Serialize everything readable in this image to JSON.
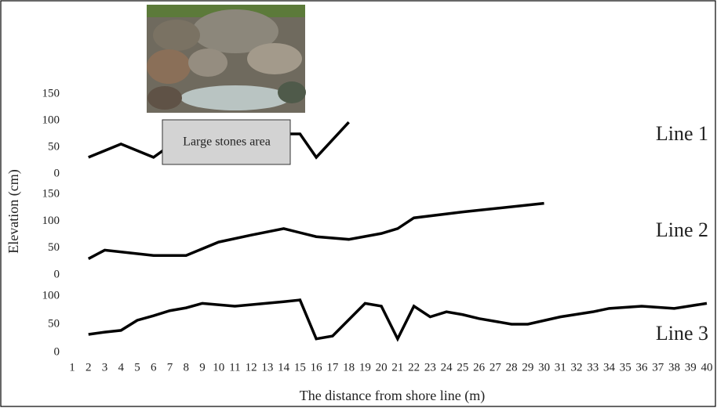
{
  "chart_data": {
    "type": "line",
    "x_label": "The distance from shore line (m)",
    "y_label": "Elevation (cm)",
    "annotation": "Large stones area",
    "xlim": [
      1,
      40
    ],
    "xticks": [
      1,
      2,
      3,
      4,
      5,
      6,
      7,
      8,
      9,
      10,
      11,
      12,
      13,
      14,
      15,
      16,
      17,
      18,
      19,
      20,
      21,
      22,
      23,
      24,
      25,
      26,
      27,
      28,
      29,
      30,
      31,
      32,
      33,
      34,
      35,
      36,
      37,
      38,
      39,
      40
    ],
    "color": "#000000",
    "panels": [
      {
        "label": "Line 1",
        "ylim": [
          0,
          150
        ],
        "yticks": [
          0,
          50,
          100,
          150
        ],
        "x": [
          2,
          4,
          6,
          8,
          15,
          16,
          18
        ],
        "values": [
          31,
          56,
          31,
          75,
          75,
          31,
          97
        ]
      },
      {
        "label": "Line 2",
        "ylim": [
          0,
          150
        ],
        "yticks": [
          0,
          50,
          100,
          150
        ],
        "x": [
          2,
          3,
          6,
          8,
          10,
          12,
          14,
          16,
          18,
          20,
          21,
          22,
          25,
          30
        ],
        "values": [
          30,
          46,
          36,
          36,
          61,
          74,
          86,
          71,
          66,
          77,
          86,
          106,
          117,
          133
        ]
      },
      {
        "label": "Line 3",
        "ylim": [
          0,
          100
        ],
        "yticks": [
          0,
          50,
          100
        ],
        "x": [
          2,
          3,
          4,
          5,
          6,
          7,
          8,
          9,
          11,
          14,
          15,
          16,
          17,
          19,
          20,
          21,
          22,
          23,
          24,
          25,
          26,
          28,
          29,
          31,
          33,
          34,
          36,
          38,
          40
        ],
        "values": [
          32,
          36,
          39,
          57,
          65,
          74,
          79,
          87,
          82,
          90,
          93,
          24,
          29,
          87,
          82,
          24,
          82,
          63,
          72,
          67,
          60,
          50,
          50,
          63,
          72,
          78,
          82,
          78,
          87
        ]
      }
    ]
  }
}
